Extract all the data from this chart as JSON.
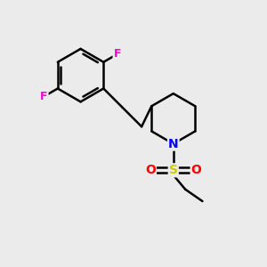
{
  "background_color": "#ebebeb",
  "bond_color": "#000000",
  "atom_colors": {
    "F": "#ff00cc",
    "N": "#0000ff",
    "S": "#cccc00",
    "O": "#ff0000"
  },
  "bond_width": 1.8,
  "figsize": [
    3.0,
    3.0
  ],
  "dpi": 100
}
